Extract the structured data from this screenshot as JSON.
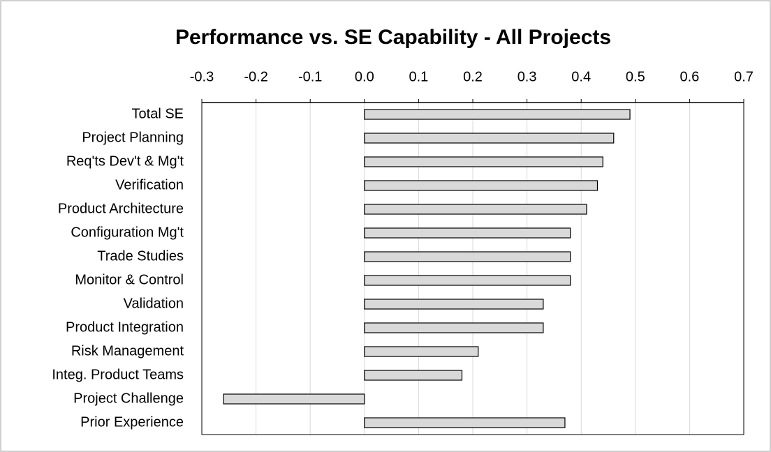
{
  "chart_data": {
    "type": "bar",
    "orientation": "horizontal",
    "title": "Performance vs. SE Capability - All Projects",
    "categories": [
      "Total SE",
      "Project Planning",
      "Req'ts Dev't & Mg't",
      "Verification",
      "Product Architecture",
      "Configuration Mg't",
      "Trade Studies",
      "Monitor & Control",
      "Validation",
      "Product Integration",
      "Risk Management",
      "Integ. Product Teams",
      "Project Challenge",
      "Prior Experience"
    ],
    "values": [
      0.49,
      0.46,
      0.44,
      0.43,
      0.41,
      0.38,
      0.38,
      0.38,
      0.33,
      0.33,
      0.21,
      0.18,
      -0.26,
      0.37
    ],
    "color": "#d9d9d9",
    "xlim": [
      -0.3,
      0.7
    ],
    "xticks": [
      -0.3,
      -0.2,
      -0.1,
      {
        "value": 0,
        "label": "0.0"
      },
      0.1,
      0.2,
      0.3,
      0.4,
      0.5,
      0.6,
      0.7
    ],
    "grid": true
  }
}
